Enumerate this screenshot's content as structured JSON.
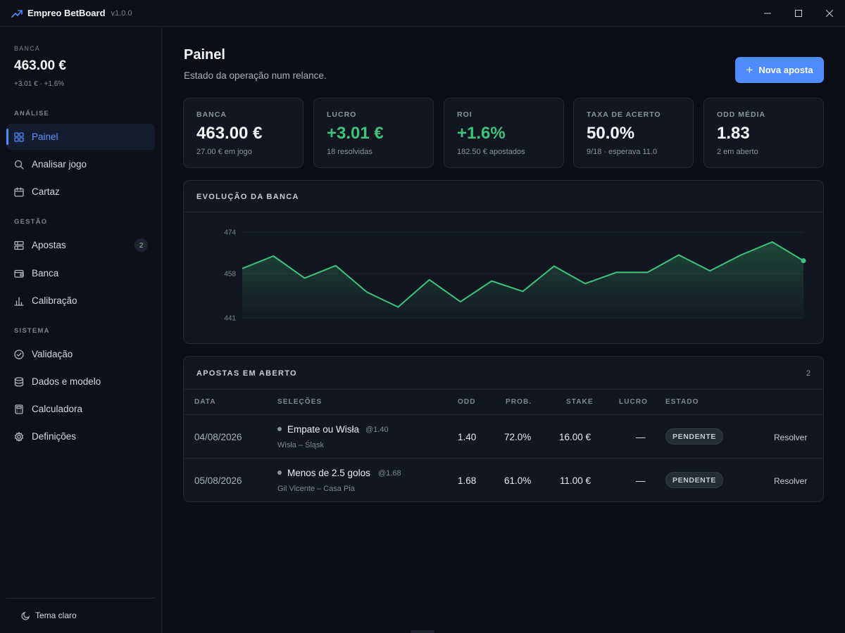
{
  "app": {
    "name": "Empreo BetBoard",
    "version": "v1.0.0",
    "logo_icon": "trending-up-icon",
    "accent": "#4f8cff"
  },
  "sidebar": {
    "bank_label": "BANCA",
    "bank_value": "463.00 €",
    "bank_delta": "+3.01 € · +1.6%",
    "sections": {
      "analysis": "ANÁLISE",
      "management": "GESTÃO",
      "system": "SISTEMA"
    },
    "items": [
      {
        "label": "Painel",
        "icon": "dashboard-grid-icon",
        "active": true
      },
      {
        "label": "Analisar jogo",
        "icon": "search-icon"
      },
      {
        "label": "Cartaz",
        "icon": "calendar-icon"
      },
      {
        "label": "Apostas",
        "icon": "list-icon",
        "badge": "2"
      },
      {
        "label": "Banca",
        "icon": "wallet-icon"
      },
      {
        "label": "Calibração",
        "icon": "bar-chart-icon"
      },
      {
        "label": "Validação",
        "icon": "check-circle-icon"
      },
      {
        "label": "Dados e modelo",
        "icon": "database-icon"
      },
      {
        "label": "Calculadora",
        "icon": "calculator-icon"
      },
      {
        "label": "Definições",
        "icon": "gear-icon"
      }
    ],
    "theme_toggle": "Tema claro"
  },
  "header": {
    "title": "Painel",
    "subtitle": "Estado da operação num relance.",
    "new_bet_label": "Nova aposta"
  },
  "kpis": [
    {
      "label": "BANCA",
      "value": "463.00 €",
      "sub": "27.00 € em jogo",
      "positive": false
    },
    {
      "label": "LUCRO",
      "value": "+3.01 €",
      "sub": "18 resolvidas",
      "positive": true
    },
    {
      "label": "ROI",
      "value": "+1.6%",
      "sub": "182.50 € apostados",
      "positive": true
    },
    {
      "label": "TAXA DE ACERTO",
      "value": "50.0%",
      "sub": "9/18 · esperava 11.0",
      "positive": false
    },
    {
      "label": "ODD MÉDIA",
      "value": "1.83",
      "sub": "2 em aberto",
      "positive": false
    }
  ],
  "bank_chart": {
    "title": "EVOLUÇÃO DA BANCA"
  },
  "chart_data": {
    "type": "area",
    "title": "EVOLUÇÃO DA BANCA",
    "xlabel": "",
    "ylabel": "",
    "ylim": [
      441,
      474
    ],
    "yticks": [
      "474",
      "458",
      "441"
    ],
    "line_color": "#3ec47a",
    "grid": true,
    "legend": "none",
    "values": [
      460,
      464.8,
      456.3,
      461.1,
      450.9,
      445.2,
      455.7,
      447.2,
      455.2,
      451.2,
      460.9,
      454.2,
      458.5,
      458.5,
      465.2,
      459.1,
      465.2,
      470.2,
      463.0
    ]
  },
  "open_bets": {
    "title": "APOSTAS EM ABERTO",
    "count": "2",
    "columns": [
      "DATA",
      "SELEÇÕES",
      "ODD",
      "PROB.",
      "STAKE",
      "LUCRO",
      "ESTADO"
    ],
    "rows": [
      {
        "date": "04/08/2026",
        "selection": "Empate ou Wisła",
        "sel_odd": "@1.40",
        "match": "Wisła – Śląsk",
        "odd": "1.40",
        "prob": "72.0%",
        "stake": "16.00 €",
        "profit": "—",
        "status": "PENDENTE",
        "action": "Resolver"
      },
      {
        "date": "05/08/2026",
        "selection": "Menos de 2.5 golos",
        "sel_odd": "@1.68",
        "match": "Gil Vicente – Casa Pia",
        "odd": "1.68",
        "prob": "61.0%",
        "stake": "11.00 €",
        "profit": "—",
        "status": "PENDENTE",
        "action": "Resolver"
      }
    ]
  }
}
